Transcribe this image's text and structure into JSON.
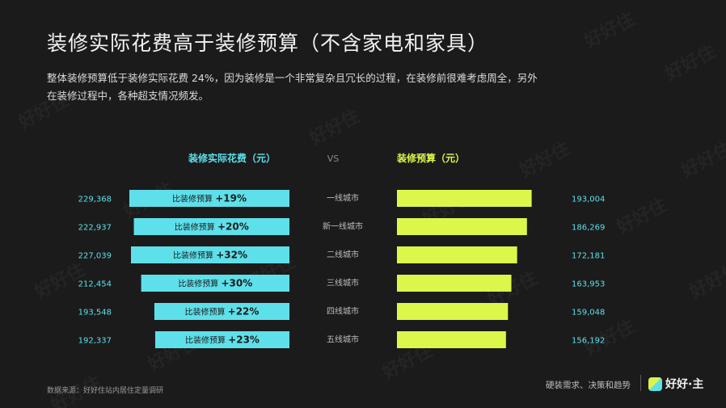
{
  "title": "装修实际花费高于装修预算（不含家电和家具）",
  "description_line1": "整体装修预算低于装修实际花费 24%，因为装修是一个非常复杂且冗长的过程，在装修前很难考虑周全，另外",
  "description_line2": "在装修过程中，各种超支情况频发。",
  "chart_data": {
    "type": "bar",
    "orientation": "horizontal-butterfly",
    "categories": [
      "一线城市",
      "新一线城市",
      "二线城市",
      "三线城市",
      "四线城市",
      "五线城市"
    ],
    "series": [
      {
        "name": "装修实际花费（元）",
        "values": [
          229368,
          222937,
          227039,
          212454,
          193548,
          192337
        ],
        "value_labels": [
          "229,368",
          "222,937",
          "227,039",
          "212,454",
          "193,548",
          "192,337"
        ],
        "bar_labels_prefix": "比装修预算",
        "bar_labels_pct": [
          "+19%",
          "+20%",
          "+32%",
          "+30%",
          "+22%",
          "+23%"
        ],
        "color": "#5ee0ea"
      },
      {
        "name": "装修预算（元）",
        "values": [
          193004,
          186269,
          172181,
          163953,
          159048,
          156192
        ],
        "value_labels": [
          "193,004",
          "186,269",
          "172,181",
          "163,953",
          "159,048",
          "156,192"
        ],
        "color": "#dcf74a"
      }
    ],
    "vs_label": "VS"
  },
  "colors": {
    "actual": "#5ee0ea",
    "budget": "#dcf74a",
    "background": "#1b1b1b"
  },
  "footer": {
    "source": "数据来源：好好住站内居住定量调研",
    "tagline": "硬装需求、决策和趋势",
    "logo_text": "好好·主",
    "logo_icon": "haohaozhu-logo-icon"
  },
  "watermark": "好好住"
}
